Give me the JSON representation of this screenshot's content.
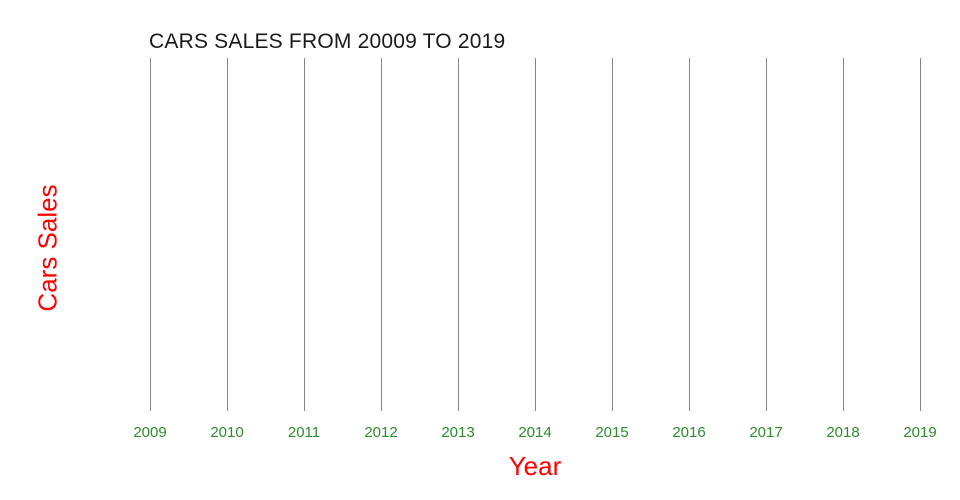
{
  "chart_data": {
    "type": "line",
    "title": "CARS SALES FROM 20009 TO 2019",
    "xlabel": "Year",
    "ylabel": "Cars Sales",
    "categories": [
      "2009",
      "2010",
      "2011",
      "2012",
      "2013",
      "2014",
      "2015",
      "2016",
      "2017",
      "2018",
      "2019"
    ],
    "series": [],
    "plot_empty": true,
    "grid": "vertical-gridlines-only",
    "legend_position": "none",
    "axes_lines": "none"
  },
  "colors": {
    "title": "#1a1a1a",
    "axis_title": "#ff0000",
    "tick_label": "#2e8b2e",
    "gridline": "#888888",
    "background": "#ffffff"
  }
}
